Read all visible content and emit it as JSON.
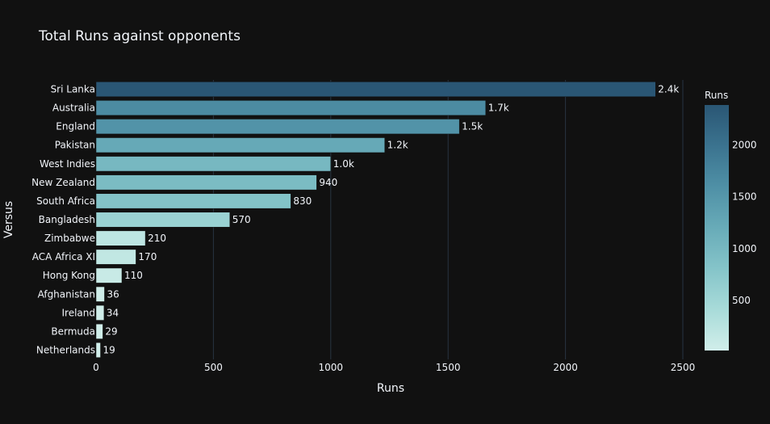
{
  "chart_data": {
    "type": "bar",
    "orientation": "horizontal",
    "title": "Total Runs against opponents",
    "xlabel": "Runs",
    "ylabel": "Versus",
    "categories": [
      "Sri Lanka",
      "Australia",
      "England",
      "Pakistan",
      "West Indies",
      "New Zealand",
      "South Africa",
      "Bangladesh",
      "Zimbabwe",
      "ACA Africa XI",
      "Hong Kong",
      "Afghanistan",
      "Ireland",
      "Bermuda",
      "Netherlands"
    ],
    "values": [
      2384,
      1660,
      1548,
      1230,
      1000,
      940,
      830,
      570,
      210,
      170,
      110,
      36,
      34,
      29,
      19
    ],
    "value_labels": [
      "2.4k",
      "1.7k",
      "1.5k",
      "1.2k",
      "1.0k",
      "940",
      "830",
      "570",
      "210",
      "170",
      "110",
      "36",
      "34",
      "29",
      "19"
    ],
    "xlim": [
      0,
      2500
    ],
    "xticks": [
      0,
      500,
      1000,
      1500,
      2000,
      2500
    ],
    "xtick_labels": [
      "0",
      "500",
      "1000",
      "1500",
      "2000",
      "2500"
    ],
    "grid": true,
    "colorbar": {
      "title": "Runs",
      "range": [
        19,
        2384
      ],
      "ticks": [
        500,
        1000,
        1500,
        2000
      ],
      "tick_labels": [
        "500",
        "1000",
        "1500",
        "2000"
      ],
      "colors": [
        "#d1eeea",
        "#a8dbd9",
        "#85c4c9",
        "#68abb8",
        "#4f90a6",
        "#3b738f",
        "#2a5674"
      ]
    }
  }
}
